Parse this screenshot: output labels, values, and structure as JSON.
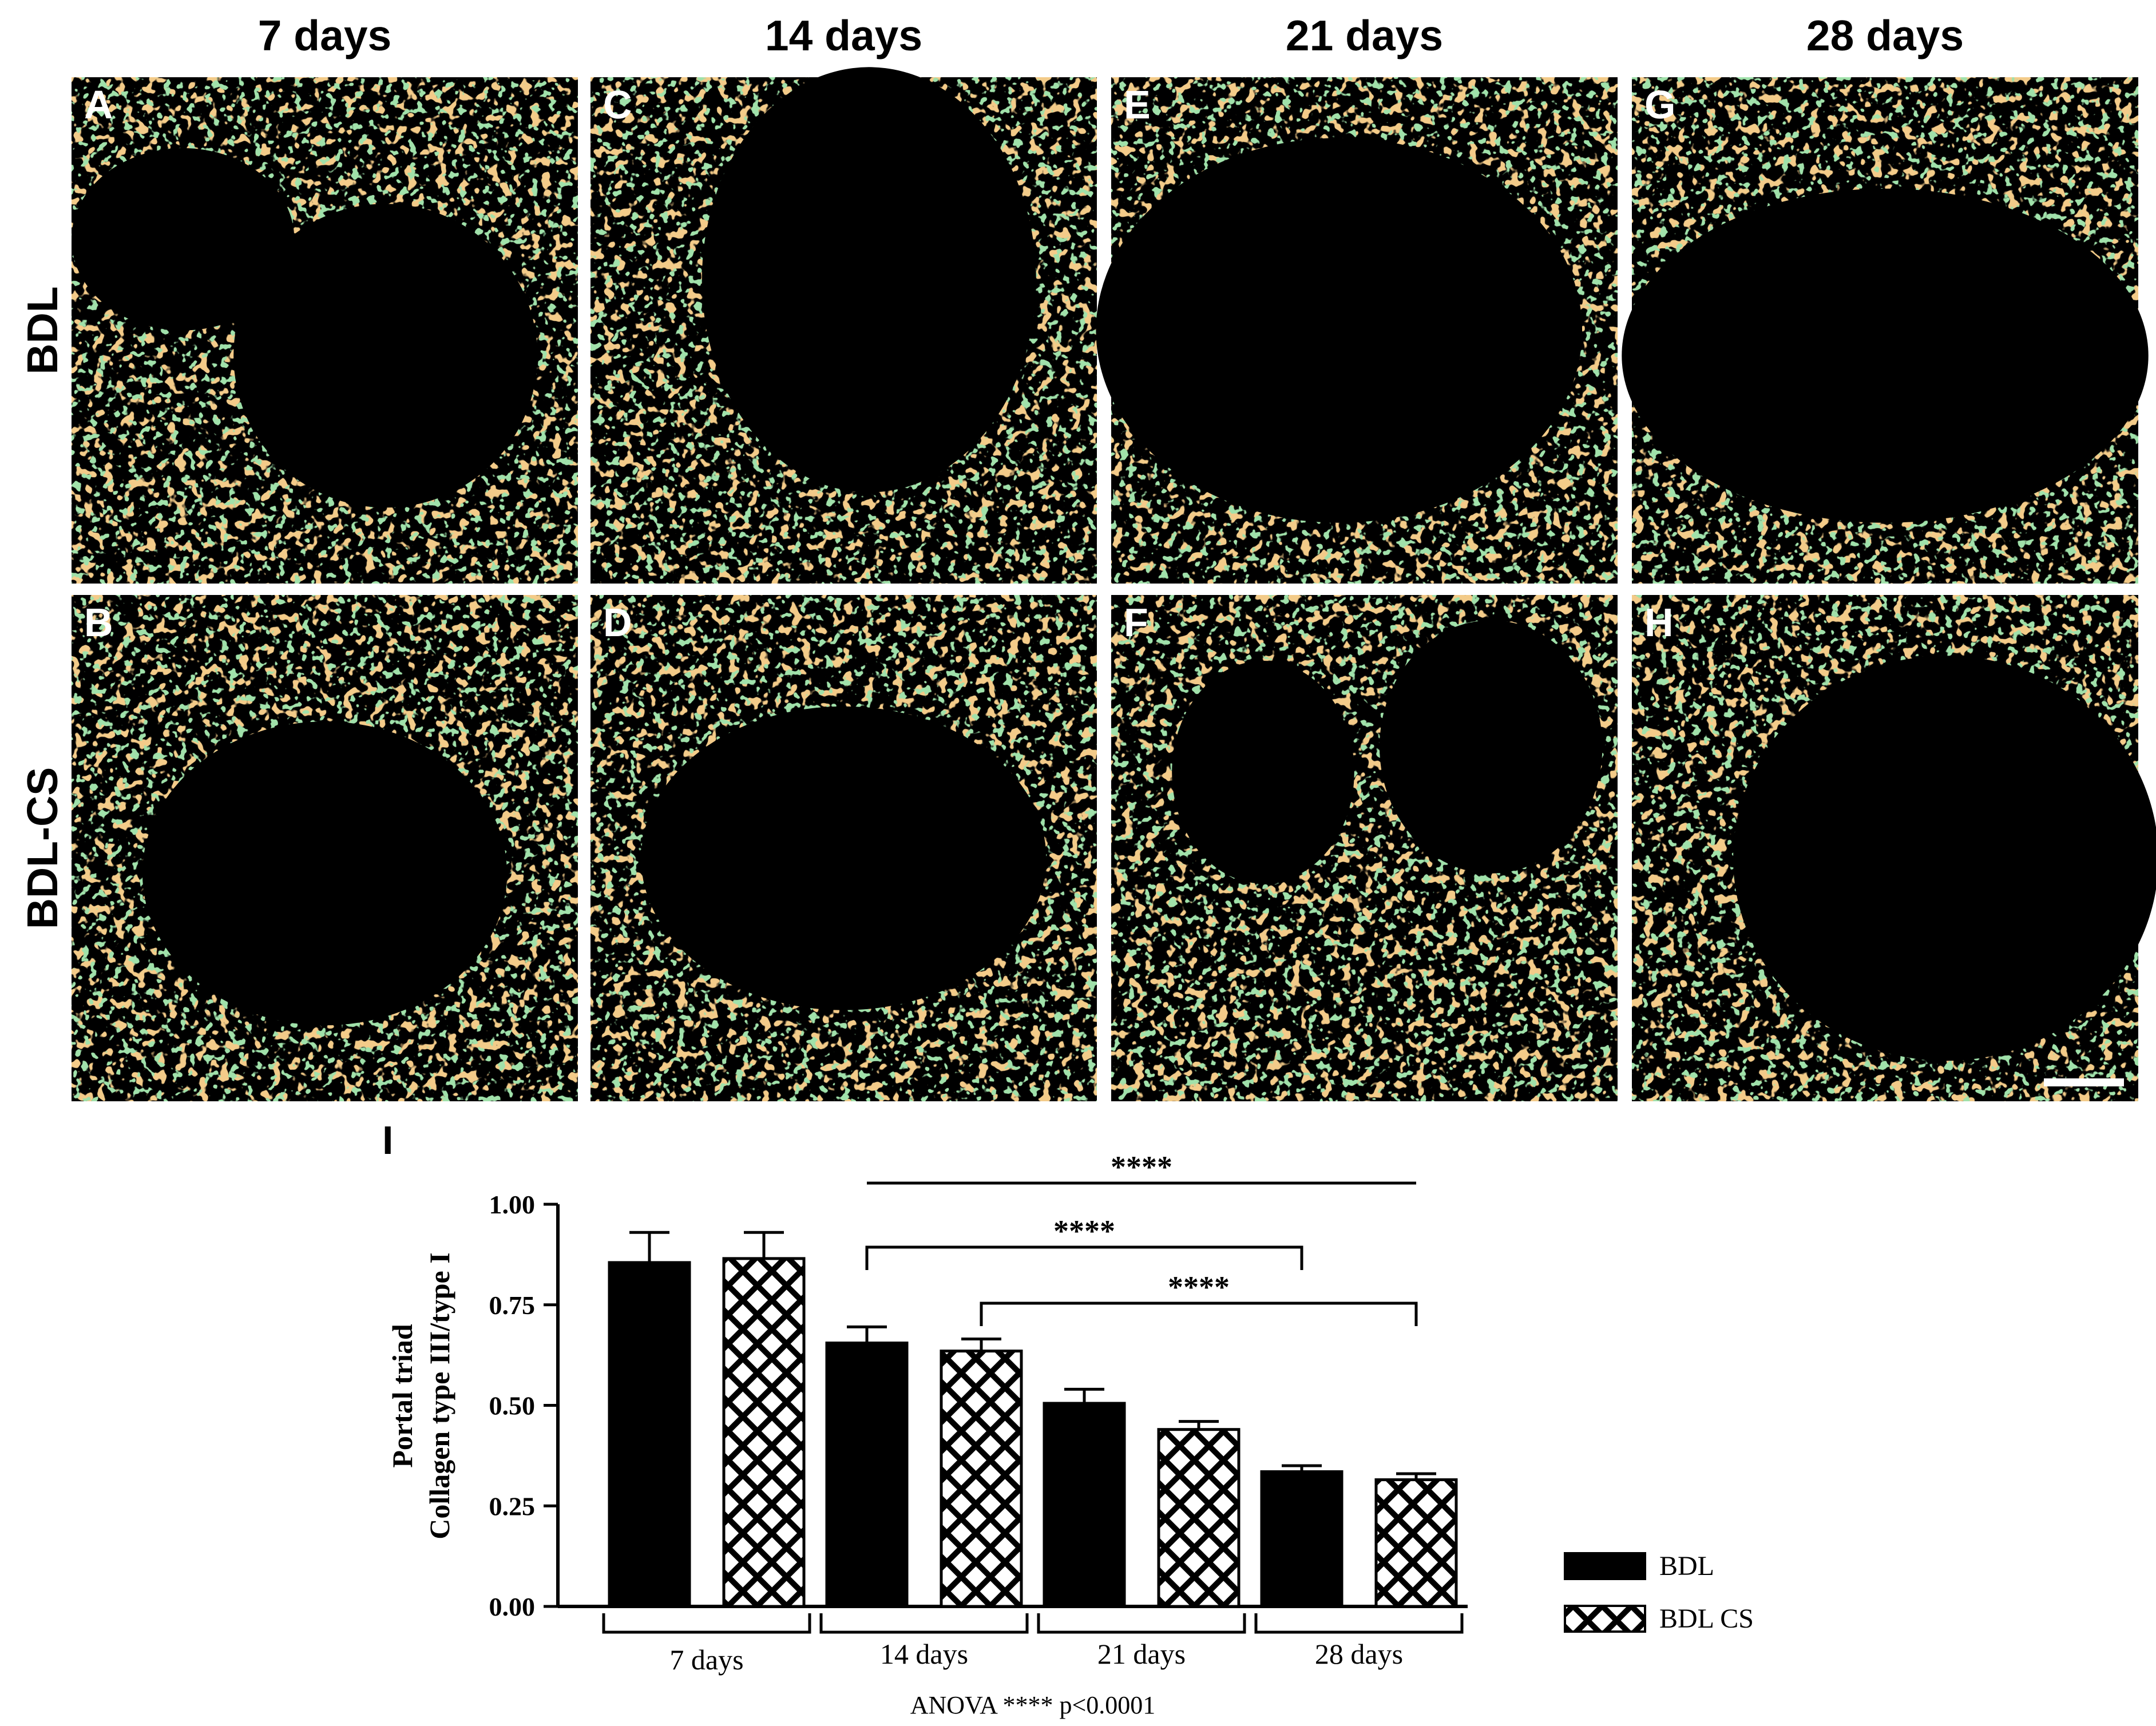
{
  "columns": [
    "7 days",
    "14 days",
    "21 days",
    "28 days"
  ],
  "rows": [
    "BDL",
    "BDL-CS"
  ],
  "panels": [
    {
      "letter": "A",
      "row": 0,
      "col": 0
    },
    {
      "letter": "C",
      "row": 0,
      "col": 1
    },
    {
      "letter": "E",
      "row": 0,
      "col": 2
    },
    {
      "letter": "G",
      "row": 0,
      "col": 3
    },
    {
      "letter": "B",
      "row": 1,
      "col": 0
    },
    {
      "letter": "D",
      "row": 1,
      "col": 1
    },
    {
      "letter": "F",
      "row": 1,
      "col": 2
    },
    {
      "letter": "H",
      "row": 1,
      "col": 3
    }
  ],
  "chart_panel_label": "I",
  "chart_data": {
    "type": "bar",
    "ylabel_line1": "Portal triad",
    "ylabel_line2": "Collagen type III/type I",
    "xlabel": "",
    "categories": [
      "7 days",
      "14 days",
      "21 days",
      "28 days"
    ],
    "ylim": [
      0,
      1.0
    ],
    "yticks": [
      "0.00",
      "0.25",
      "0.50",
      "0.75",
      "1.00"
    ],
    "series": [
      {
        "name": "BDL",
        "pattern": "solid",
        "values": [
          0.855,
          0.655,
          0.505,
          0.335
        ],
        "errors": [
          0.075,
          0.04,
          0.035,
          0.015
        ]
      },
      {
        "name": "BDL CS",
        "pattern": "crosshatch",
        "values": [
          0.865,
          0.635,
          0.44,
          0.315
        ],
        "errors": [
          0.065,
          0.03,
          0.02,
          0.015
        ]
      }
    ],
    "significance": [
      {
        "label": "****",
        "from": [
          1,
          0
        ],
        "to": [
          3,
          1
        ],
        "style": "line"
      },
      {
        "label": "****",
        "from": [
          1,
          0
        ],
        "to": [
          3,
          0
        ],
        "style": "bracket"
      },
      {
        "label": "****",
        "from": [
          1,
          1
        ],
        "to": [
          3,
          1
        ],
        "style": "bracket"
      }
    ],
    "legend_position": "right",
    "footnote": "ANOVA **** p<0.0001"
  },
  "colors": {
    "bar": "#000000",
    "background": "#ffffff",
    "micrograph_bg": "#000000"
  }
}
